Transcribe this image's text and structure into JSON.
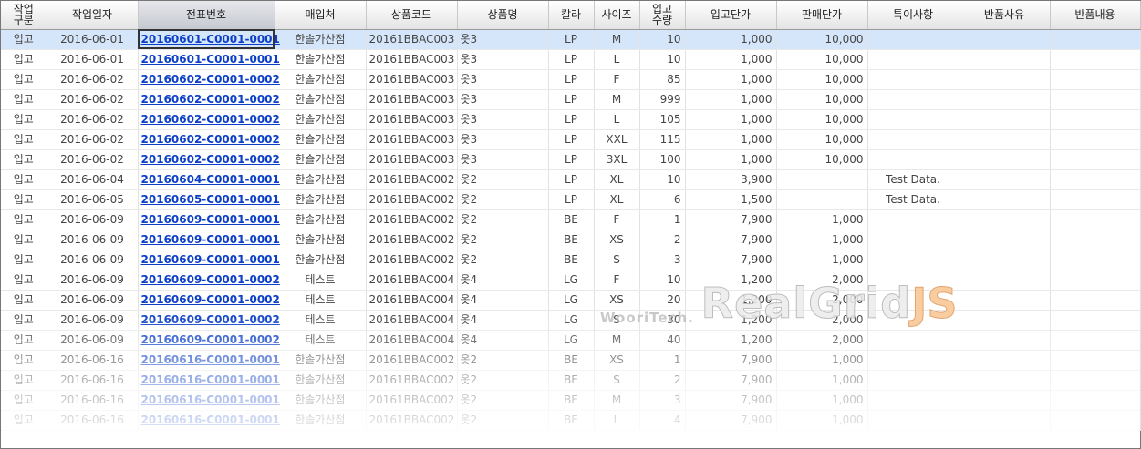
{
  "columns": [
    {
      "key": "type",
      "label": "작업\n구분",
      "width": 50,
      "align": "c"
    },
    {
      "key": "date",
      "label": "작업일자",
      "width": 100,
      "align": "c"
    },
    {
      "key": "slip",
      "label": "전표번호",
      "width": 150,
      "align": "c"
    },
    {
      "key": "vendor",
      "label": "매입처",
      "width": 100,
      "align": "c"
    },
    {
      "key": "code",
      "label": "상품코드",
      "width": 100,
      "align": "c"
    },
    {
      "key": "name",
      "label": "상품명",
      "width": 100,
      "align": "l"
    },
    {
      "key": "color",
      "label": "칼라",
      "width": 50,
      "align": "c"
    },
    {
      "key": "size",
      "label": "사이즈",
      "width": 50,
      "align": "c"
    },
    {
      "key": "qty",
      "label": "입고\n수량",
      "width": 50,
      "align": "r"
    },
    {
      "key": "inprice",
      "label": "입고단가",
      "width": 100,
      "align": "r"
    },
    {
      "key": "saleprice",
      "label": "판매단가",
      "width": 100,
      "align": "r"
    },
    {
      "key": "note",
      "label": "특이사항",
      "width": 100,
      "align": "c"
    },
    {
      "key": "reason",
      "label": "반품사유",
      "width": 100,
      "align": "c"
    },
    {
      "key": "detail",
      "label": "반품내용",
      "width": 99,
      "align": "c"
    }
  ],
  "rows": [
    [
      "입고",
      "2016-06-01",
      "20160601-C0001-0001",
      "한솔가산점",
      "20161BBAC003",
      "옷3",
      "LP",
      "M",
      "10",
      "1,000",
      "10,000",
      "",
      "",
      ""
    ],
    [
      "입고",
      "2016-06-01",
      "20160601-C0001-0001",
      "한솔가산점",
      "20161BBAC003",
      "옷3",
      "LP",
      "L",
      "10",
      "1,000",
      "10,000",
      "",
      "",
      ""
    ],
    [
      "입고",
      "2016-06-02",
      "20160602-C0001-0002",
      "한솔가산점",
      "20161BBAC003",
      "옷3",
      "LP",
      "F",
      "85",
      "1,000",
      "10,000",
      "",
      "",
      ""
    ],
    [
      "입고",
      "2016-06-02",
      "20160602-C0001-0002",
      "한솔가산점",
      "20161BBAC003",
      "옷3",
      "LP",
      "M",
      "999",
      "1,000",
      "10,000",
      "",
      "",
      ""
    ],
    [
      "입고",
      "2016-06-02",
      "20160602-C0001-0002",
      "한솔가산점",
      "20161BBAC003",
      "옷3",
      "LP",
      "L",
      "105",
      "1,000",
      "10,000",
      "",
      "",
      ""
    ],
    [
      "입고",
      "2016-06-02",
      "20160602-C0001-0002",
      "한솔가산점",
      "20161BBAC003",
      "옷3",
      "LP",
      "XXL",
      "115",
      "1,000",
      "10,000",
      "",
      "",
      ""
    ],
    [
      "입고",
      "2016-06-02",
      "20160602-C0001-0002",
      "한솔가산점",
      "20161BBAC003",
      "옷3",
      "LP",
      "3XL",
      "100",
      "1,000",
      "10,000",
      "",
      "",
      ""
    ],
    [
      "입고",
      "2016-06-04",
      "20160604-C0001-0001",
      "한솔가산점",
      "20161BBAC002",
      "옷2",
      "LP",
      "XL",
      "10",
      "3,900",
      "",
      "Test Data.",
      "",
      ""
    ],
    [
      "입고",
      "2016-06-05",
      "20160605-C0001-0001",
      "한솔가산점",
      "20161BBAC002",
      "옷2",
      "LP",
      "XL",
      "6",
      "1,500",
      "",
      "Test Data.",
      "",
      ""
    ],
    [
      "입고",
      "2016-06-09",
      "20160609-C0001-0001",
      "한솔가산점",
      "20161BBAC002",
      "옷2",
      "BE",
      "F",
      "1",
      "7,900",
      "1,000",
      "",
      "",
      ""
    ],
    [
      "입고",
      "2016-06-09",
      "20160609-C0001-0001",
      "한솔가산점",
      "20161BBAC002",
      "옷2",
      "BE",
      "XS",
      "2",
      "7,900",
      "1,000",
      "",
      "",
      ""
    ],
    [
      "입고",
      "2016-06-09",
      "20160609-C0001-0001",
      "한솔가산점",
      "20161BBAC002",
      "옷2",
      "BE",
      "S",
      "3",
      "7,900",
      "1,000",
      "",
      "",
      ""
    ],
    [
      "입고",
      "2016-06-09",
      "20160609-C0001-0002",
      "테스트",
      "20161BBAC004",
      "옷4",
      "LG",
      "F",
      "10",
      "1,200",
      "2,000",
      "",
      "",
      ""
    ],
    [
      "입고",
      "2016-06-09",
      "20160609-C0001-0002",
      "테스트",
      "20161BBAC004",
      "옷4",
      "LG",
      "XS",
      "20",
      "1,200",
      "2,000",
      "",
      "",
      ""
    ],
    [
      "입고",
      "2016-06-09",
      "20160609-C0001-0002",
      "테스트",
      "20161BBAC004",
      "옷4",
      "LG",
      "S",
      "30",
      "1,200",
      "2,000",
      "",
      "",
      ""
    ],
    [
      "입고",
      "2016-06-09",
      "20160609-C0001-0002",
      "테스트",
      "20161BBAC004",
      "옷4",
      "LG",
      "M",
      "40",
      "1,200",
      "2,000",
      "",
      "",
      ""
    ],
    [
      "입고",
      "2016-06-16",
      "20160616-C0001-0001",
      "한솔가산점",
      "20161BBAC002",
      "옷2",
      "BE",
      "XS",
      "1",
      "7,900",
      "1,000",
      "",
      "",
      ""
    ],
    [
      "입고",
      "2016-06-16",
      "20160616-C0001-0001",
      "한솔가산점",
      "20161BBAC002",
      "옷2",
      "BE",
      "S",
      "2",
      "7,900",
      "1,000",
      "",
      "",
      ""
    ],
    [
      "입고",
      "2016-06-16",
      "20160616-C0001-0001",
      "한솔가산점",
      "20161BBAC002",
      "옷2",
      "BE",
      "M",
      "3",
      "7,900",
      "1,000",
      "",
      "",
      ""
    ],
    [
      "입고",
      "2016-06-16",
      "20160616-C0001-0001",
      "한솔가산점",
      "20161BBAC002",
      "옷2",
      "BE",
      "L",
      "4",
      "7,900",
      "1,000",
      "",
      "",
      ""
    ]
  ],
  "selected_row": 0,
  "focused_column": "slip",
  "sorted_column": "slip",
  "watermark": {
    "small": "WooriTech.",
    "big": "RealGrid",
    "accent": "JS"
  },
  "colors": {
    "link": "#0b3fc7",
    "selection": "#d6e6fa",
    "border": "#777777"
  }
}
